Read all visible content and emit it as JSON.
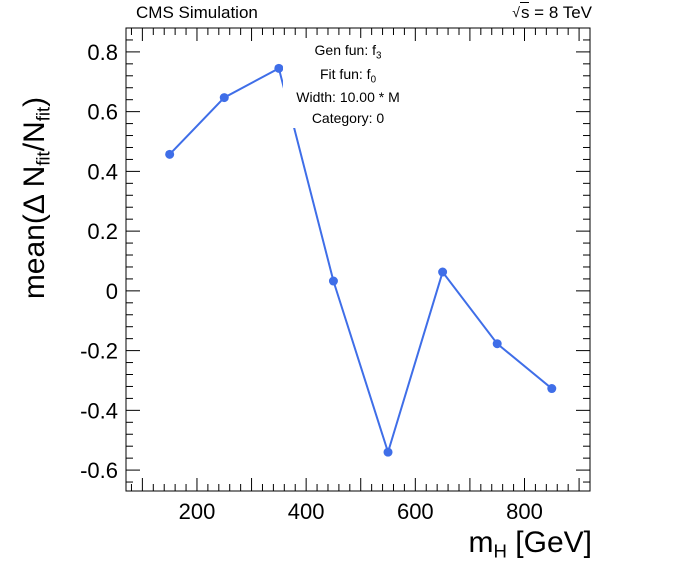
{
  "header": {
    "left_label": "CMS Simulation",
    "right_symbol": "s",
    "right_value": "= 8 TeV"
  },
  "annotation": {
    "gen_fun_prefix": "Gen fun: f",
    "gen_fun_sub": "3",
    "fit_fun_prefix": "Fit fun: f",
    "fit_fun_sub": "0",
    "width": "Width: 10.00 * M",
    "category": "Category: 0"
  },
  "axis_labels": {
    "y_main": "mean(Δ N",
    "y_sub1": "fit",
    "y_mid": "/N",
    "y_sub2": "fit",
    "y_end": ")",
    "x_main": "m",
    "x_sub": "H",
    "x_unit": " [GeV]"
  },
  "chart_data": {
    "type": "line",
    "x": [
      150,
      250,
      350,
      450,
      550,
      650,
      750,
      850
    ],
    "y": [
      0.457,
      0.647,
      0.745,
      0.033,
      -0.54,
      0.063,
      -0.177,
      -0.327
    ],
    "xlim": [
      70,
      920
    ],
    "ylim": [
      -0.67,
      0.88
    ],
    "xticks": [
      200,
      400,
      600,
      800
    ],
    "xtick_labels": [
      "200",
      "400",
      "600",
      "800"
    ],
    "yticks": [
      -0.6,
      -0.4,
      -0.2,
      0,
      0.2,
      0.4,
      0.6,
      0.8
    ],
    "ytick_labels": [
      "-0.6",
      "-0.4",
      "-0.2",
      "0",
      "0.2",
      "0.4",
      "0.6",
      "0.8"
    ],
    "x_minor_step": 20,
    "y_minor_step": 0.04,
    "grid": false,
    "color": "#3f6ee8"
  }
}
